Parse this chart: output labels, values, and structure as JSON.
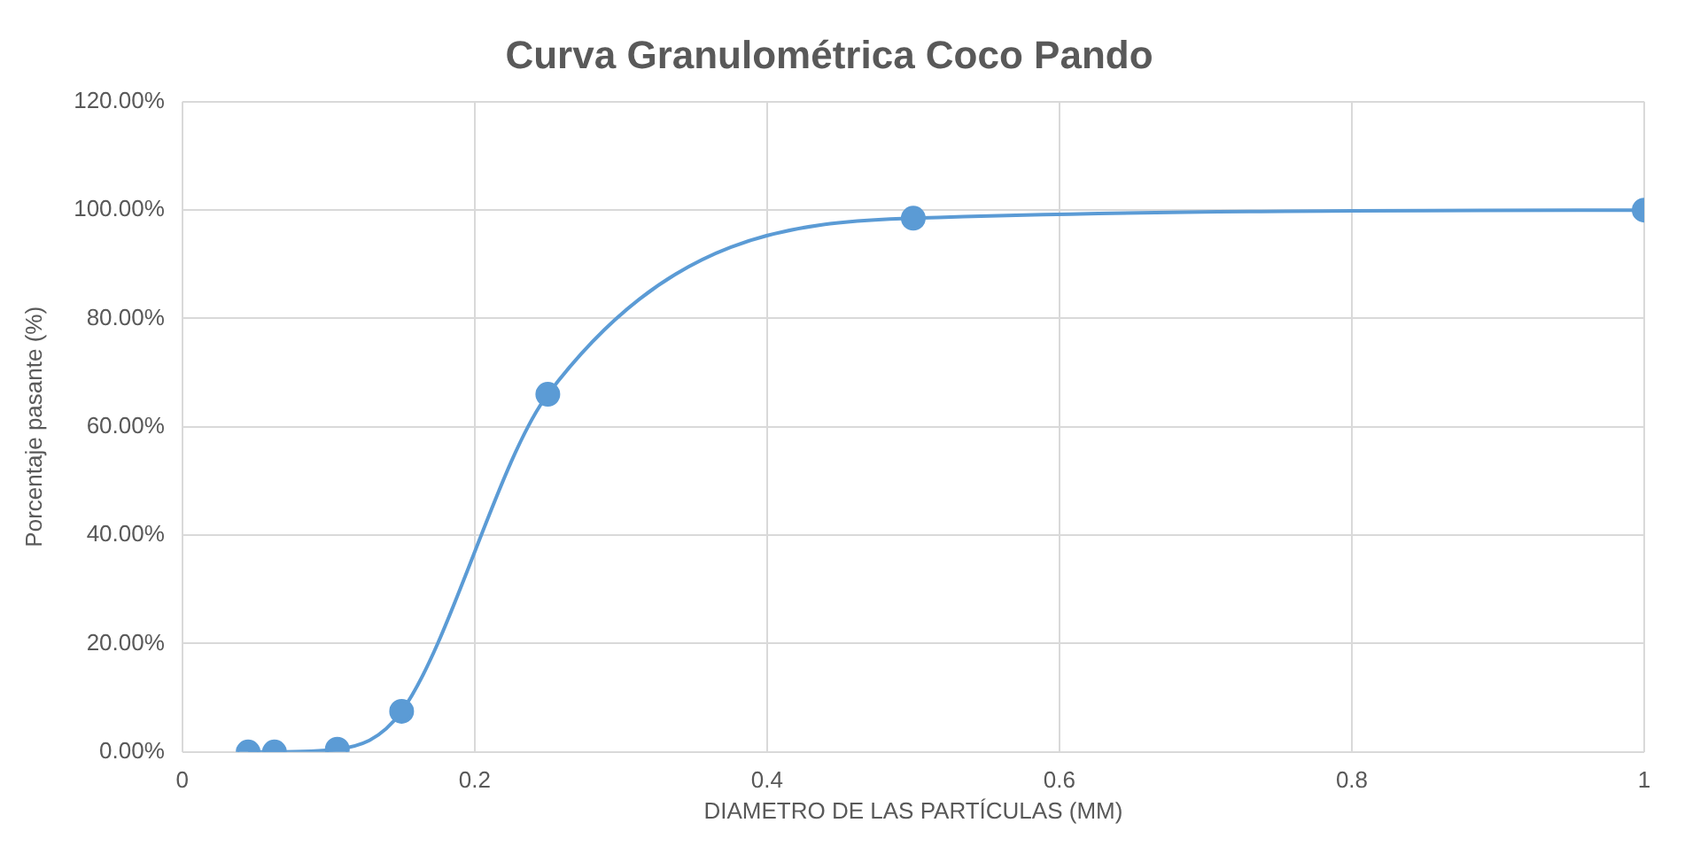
{
  "chart_data": {
    "type": "line",
    "title": "Curva Granulométrica Coco Pando",
    "xlabel": "DIAMETRO DE LAS PARTÍCULAS (MM)",
    "ylabel": "Porcentaje pasante (%)",
    "x": [
      0.045,
      0.063,
      0.106,
      0.15,
      0.25,
      0.5,
      1
    ],
    "series": [
      {
        "color": "#5b9bd5",
        "values": [
          0,
          0,
          0.5,
          7.5,
          66,
          98.5,
          100
        ]
      }
    ],
    "xlim": [
      0,
      1
    ],
    "xticks": [
      0,
      0.2,
      0.4,
      0.6,
      0.8,
      1
    ],
    "ylim": [
      0,
      120
    ],
    "yticks": [
      {
        "value": 0,
        "label": "0.00%"
      },
      {
        "value": 20,
        "label": "20.00%"
      },
      {
        "value": 40,
        "label": "40.00%"
      },
      {
        "value": 60,
        "label": "60.00%"
      },
      {
        "value": 80,
        "label": "80.00%"
      },
      {
        "value": 100,
        "label": "100.00%"
      },
      {
        "value": 120,
        "label": "120.00%"
      }
    ],
    "grid": true,
    "marker": "circle",
    "legend": false
  }
}
